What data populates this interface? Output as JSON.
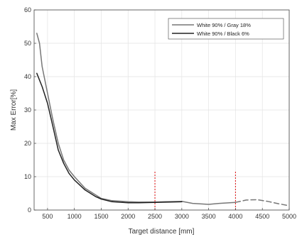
{
  "chart_data": {
    "type": "line",
    "xlabel": "Target distance [mm]",
    "ylabel": "Max Error[%]",
    "xlim": [
      250,
      5000
    ],
    "ylim": [
      0,
      60
    ],
    "xticks": [
      500,
      1000,
      1500,
      2000,
      2500,
      3000,
      3500,
      4000,
      4500,
      5000
    ],
    "yticks": [
      0,
      10,
      20,
      30,
      40,
      50,
      60
    ],
    "grid": true,
    "legend_position": "top-right",
    "series": [
      {
        "name": "White 90% / Gray 18%",
        "color": "#777777",
        "x": [
          300,
          350,
          400,
          500,
          600,
          700,
          800,
          900,
          1000,
          1200,
          1400,
          1500,
          1700,
          2000,
          2200,
          2500,
          2700,
          3000,
          3200,
          3500,
          3700,
          4000
        ],
        "y": [
          53,
          50,
          43,
          35,
          27,
          20,
          15,
          12,
          10,
          6.5,
          4.5,
          3.5,
          2.8,
          2.5,
          2.4,
          2.4,
          2.5,
          2.6,
          2.0,
          1.7,
          2.0,
          2.3
        ]
      },
      {
        "name": "White 90% / Black 6%",
        "color": "#222222",
        "x": [
          300,
          400,
          500,
          600,
          700,
          800,
          900,
          1000,
          1200,
          1400,
          1500,
          1700,
          2000,
          2200,
          2500,
          3000
        ],
        "y": [
          41,
          37,
          32,
          25,
          18,
          14,
          11,
          9,
          6,
          4,
          3.3,
          2.5,
          2.2,
          2.2,
          2.3,
          2.5
        ]
      },
      {
        "name": "",
        "color": "#777777",
        "dashed": true,
        "x": [
          4000,
          4200,
          4400,
          4600,
          4800,
          5000
        ],
        "y": [
          2.3,
          3.0,
          3.1,
          2.6,
          1.9,
          1.3
        ]
      }
    ],
    "vertical_markers": [
      {
        "x": 2500,
        "y_top": 11.5,
        "color": "#e02020",
        "style": "dashed"
      },
      {
        "x": 4000,
        "y_top": 11.5,
        "color": "#e02020",
        "style": "dashed"
      }
    ]
  }
}
